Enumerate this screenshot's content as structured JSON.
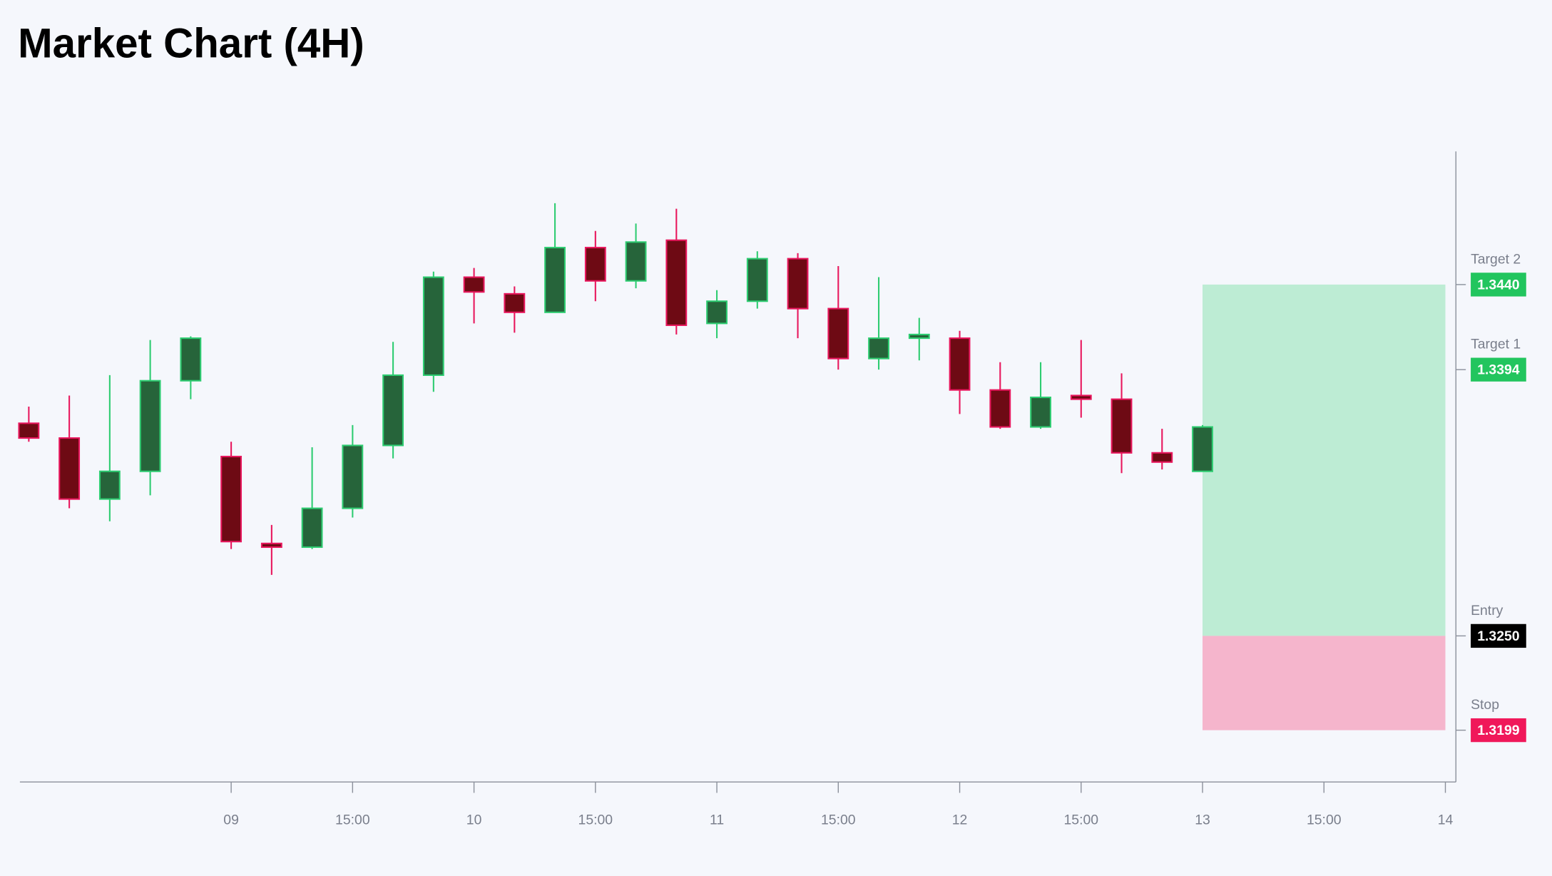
{
  "chart_data": {
    "type": "candlestick",
    "title": "Market Chart (4H)",
    "x": [
      0,
      1,
      2,
      3,
      4,
      5,
      6,
      7,
      8,
      9,
      10,
      11,
      12,
      13,
      14,
      15,
      16,
      17,
      18,
      19,
      20,
      21,
      22,
      23,
      24,
      25,
      26,
      27,
      28,
      29
    ],
    "open": [
      1.3365,
      1.3357,
      1.3324,
      1.3339,
      1.3388,
      1.3347,
      1.33,
      1.3298,
      1.3319,
      1.3353,
      1.3391,
      1.3444,
      1.3435,
      1.3425,
      1.346,
      1.3442,
      1.3464,
      1.3419,
      1.3431,
      1.3454,
      1.3427,
      1.34,
      1.3411,
      1.3411,
      1.3383,
      1.3363,
      1.338,
      1.3378,
      1.3349,
      1.3339
    ],
    "high": [
      1.3374,
      1.338,
      1.3391,
      1.341,
      1.3412,
      1.3355,
      1.331,
      1.3352,
      1.3364,
      1.3409,
      1.3447,
      1.3449,
      1.3439,
      1.3484,
      1.3469,
      1.3473,
      1.3481,
      1.3437,
      1.3458,
      1.3457,
      1.345,
      1.3444,
      1.3422,
      1.3415,
      1.3398,
      1.3398,
      1.341,
      1.3392,
      1.3362,
      1.3364
    ],
    "low": [
      1.3355,
      1.3319,
      1.3312,
      1.3326,
      1.3378,
      1.3297,
      1.3283,
      1.3297,
      1.3314,
      1.3346,
      1.3382,
      1.3419,
      1.3414,
      1.3425,
      1.3431,
      1.3438,
      1.3413,
      1.3411,
      1.3427,
      1.3411,
      1.3394,
      1.3394,
      1.3399,
      1.337,
      1.3362,
      1.3362,
      1.3368,
      1.3338,
      1.334,
      1.3339
    ],
    "close": [
      1.3357,
      1.3324,
      1.3339,
      1.3388,
      1.3411,
      1.3301,
      1.3298,
      1.3319,
      1.3353,
      1.3391,
      1.3444,
      1.3436,
      1.3425,
      1.346,
      1.3442,
      1.3463,
      1.3418,
      1.3431,
      1.3454,
      1.3427,
      1.34,
      1.3411,
      1.3413,
      1.3383,
      1.3363,
      1.3379,
      1.3378,
      1.3349,
      1.3344,
      1.3363
    ],
    "up_color": "#26643a",
    "up_edge": "#2ecc71",
    "down_color": "#6e0a14",
    "down_edge": "#e8175d",
    "xlim": [
      -0.22,
      35.26
    ],
    "xticks": [
      {
        "value": 5,
        "label": "09"
      },
      {
        "value": 8,
        "label": "15:00"
      },
      {
        "value": 11,
        "label": "10"
      },
      {
        "value": 14,
        "label": "15:00"
      },
      {
        "value": 17,
        "label": "11"
      },
      {
        "value": 20,
        "label": "15:00"
      },
      {
        "value": 23,
        "label": "12"
      },
      {
        "value": 26,
        "label": "15:00"
      },
      {
        "value": 29,
        "label": "13"
      },
      {
        "value": 32,
        "label": "15:00"
      },
      {
        "value": 35,
        "label": "14"
      }
    ],
    "ylim": [
      1.3171,
      1.3512
    ],
    "levels": [
      {
        "name": "Target 2",
        "value": 1.344,
        "label": "1.3440",
        "color": "#22c55e"
      },
      {
        "name": "Target 1",
        "value": 1.3394,
        "label": "1.3394",
        "color": "#22c55e"
      },
      {
        "name": "Entry",
        "value": 1.325,
        "label": "1.3250",
        "color": "#000000"
      },
      {
        "name": "Stop",
        "value": 1.3199,
        "label": "1.3199",
        "color": "#f0185a"
      }
    ],
    "zone_x": [
      29,
      35
    ],
    "profit_color": "#bdecd4",
    "loss_color": "#f5b5cc"
  }
}
